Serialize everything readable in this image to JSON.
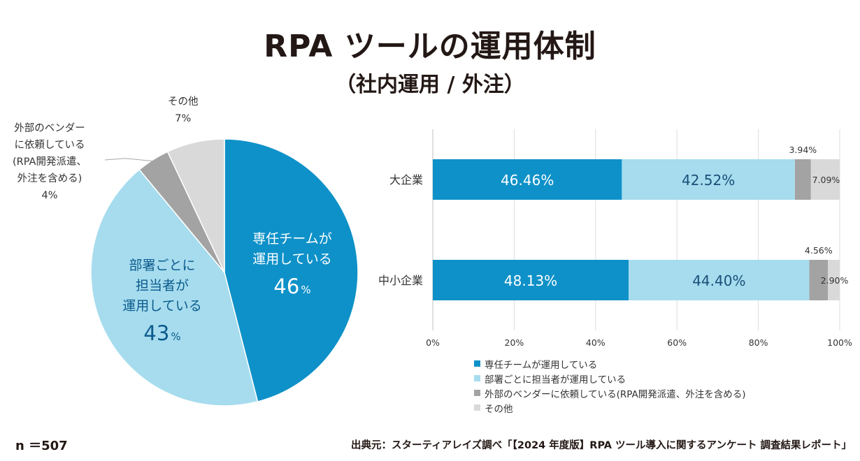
{
  "title": "RPA ツールの運用体制",
  "subtitle": "（社内運用 / 外注）",
  "n_label": "n ＝507",
  "source": "出典元：スターティアレイズ調べ「【2024 年度版】RPA ツール導入に関するアンケート 調査結果レポート」",
  "colors": {
    "dedicated": "#0e91c8",
    "department": "#a6dcee",
    "vendor": "#a3a3a3",
    "other": "#d9d9d9",
    "pie_label_dark": "#0b5a8c"
  },
  "chart_data": [
    {
      "type": "pie",
      "slices": [
        {
          "name_lines": [
            "専任チームが",
            "運用している"
          ],
          "value": 46,
          "pct_num": "46",
          "pct_unit": "%"
        },
        {
          "name_lines": [
            "部署ごとに",
            "担当者が",
            "運用している"
          ],
          "value": 43,
          "pct_num": "43",
          "pct_unit": "%"
        },
        {
          "name_lines": [
            "外部のベンダー",
            "に依頼している",
            "(RPA開発派遣、",
            "外注を含める)"
          ],
          "value": 4,
          "pct_label": "4%"
        },
        {
          "name_lines": [
            "その他"
          ],
          "value": 7,
          "pct_label": "7%"
        }
      ]
    },
    {
      "type": "bar",
      "orientation": "horizontal",
      "stacked": true,
      "categories": [
        "大企業",
        "中小企業"
      ],
      "series": [
        {
          "name": "専任チームが運用している",
          "values": [
            46.46,
            48.13
          ],
          "labels": [
            "46.46%",
            "48.13%"
          ]
        },
        {
          "name": "部署ごとに担当者が運用している",
          "values": [
            42.52,
            44.4
          ],
          "labels": [
            "42.52%",
            "44.40%"
          ]
        },
        {
          "name": "外部のベンダーに依頼している(RPA開発派遣、外注を含める)",
          "values": [
            3.94,
            4.56
          ],
          "labels": [
            "3.94%",
            "4.56%"
          ]
        },
        {
          "name": "その他",
          "values": [
            7.09,
            2.9
          ],
          "labels": [
            "7.09%",
            "2.90%"
          ]
        }
      ],
      "xlim": [
        0,
        100
      ],
      "xticks": [
        "0%",
        "20%",
        "40%",
        "60%",
        "80%",
        "100%"
      ],
      "grid": true,
      "legend_position": "bottom"
    }
  ]
}
